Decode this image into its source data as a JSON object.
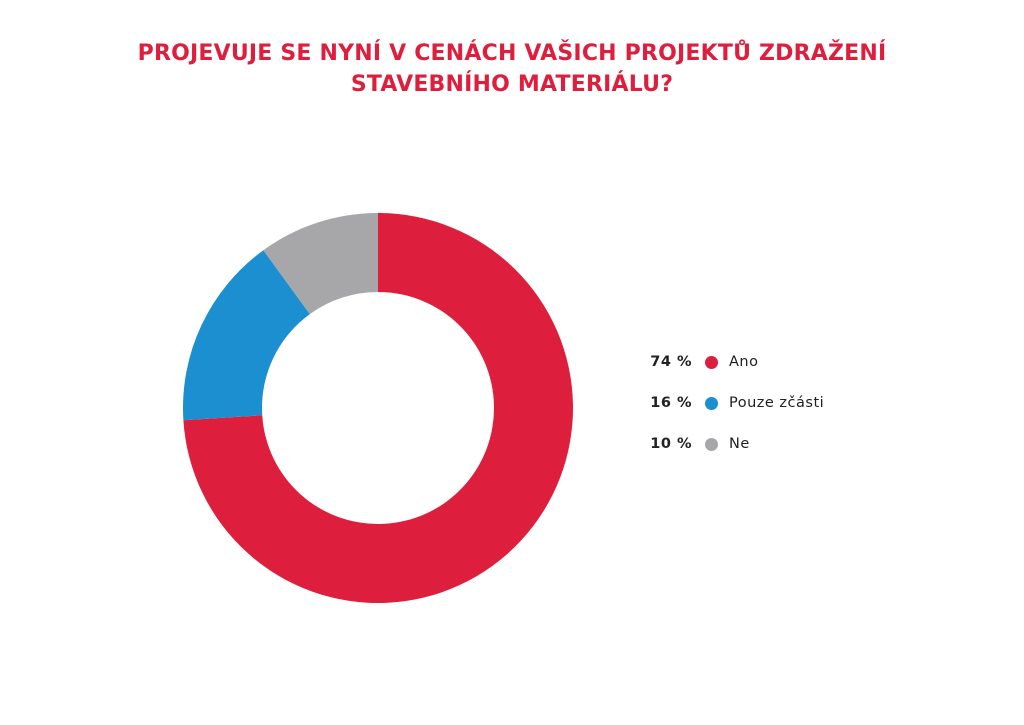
{
  "title": {
    "line1": "PROJEVUJE SE NYNÍ V CENÁCH VAŠICH PROJEKTŮ ZDRAŽENÍ",
    "line2": "STAVEBNÍHO MATERIÁLU?"
  },
  "chart_data": {
    "type": "pie",
    "variant": "donut",
    "title": "PROJEVUJE SE NYNÍ V CENÁCH VAŠICH PROJEKTŮ ZDRAŽENÍ STAVEBNÍHO MATERIÁLU?",
    "slices": [
      {
        "label": "Ano",
        "value": 74,
        "value_label": "74 %",
        "color": "#dd1f3d"
      },
      {
        "label": "Pouze zčásti",
        "value": 16,
        "value_label": "16 %",
        "color": "#1b8fd0"
      },
      {
        "label": "Ne",
        "value": 10,
        "value_label": "10 %",
        "color": "#a7a7a9"
      }
    ],
    "legend_placement": "right"
  }
}
